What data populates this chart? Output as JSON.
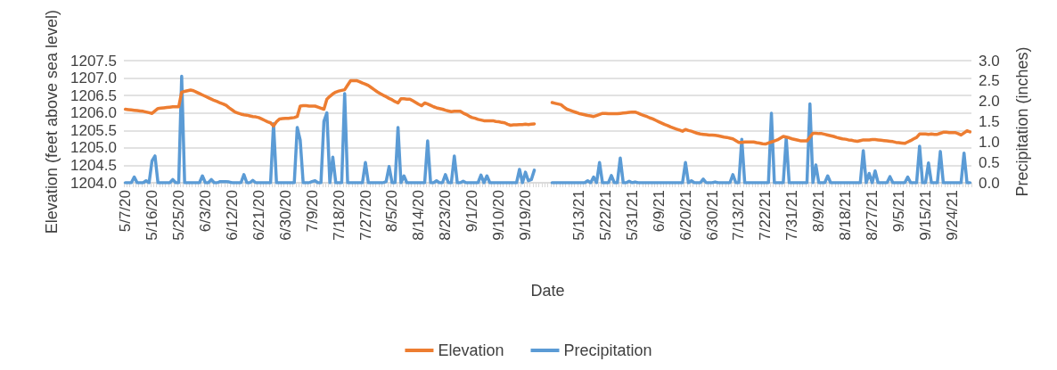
{
  "chart_data": {
    "type": "line",
    "xlabel": "Date",
    "ylabel": "Elevation (feet above sea level)",
    "y2label": "Precipitation (inches)",
    "categories": [
      "5/7/20",
      null,
      null,
      null,
      null,
      null,
      null,
      null,
      null,
      "5/16/20",
      null,
      null,
      null,
      null,
      null,
      null,
      null,
      null,
      "5/25/20",
      null,
      null,
      null,
      null,
      null,
      null,
      null,
      null,
      "6/3/20",
      null,
      null,
      null,
      null,
      null,
      null,
      null,
      null,
      "6/12/20",
      null,
      null,
      null,
      null,
      null,
      null,
      null,
      null,
      "6/21/20",
      null,
      null,
      null,
      null,
      null,
      null,
      null,
      null,
      "6/30/20",
      null,
      null,
      null,
      null,
      null,
      null,
      null,
      null,
      "7/9/20",
      null,
      null,
      null,
      null,
      null,
      null,
      null,
      null,
      "7/18/20",
      null,
      null,
      null,
      null,
      null,
      null,
      null,
      null,
      "7/27/20",
      null,
      null,
      null,
      null,
      null,
      null,
      null,
      null,
      "8/5/20",
      null,
      null,
      null,
      null,
      null,
      null,
      null,
      null,
      "8/14/20",
      null,
      null,
      null,
      null,
      null,
      null,
      null,
      null,
      "8/23/20",
      null,
      null,
      null,
      null,
      null,
      null,
      null,
      null,
      "9/1/20",
      null,
      null,
      null,
      null,
      null,
      null,
      null,
      null,
      "9/10/20",
      null,
      null,
      null,
      null,
      null,
      null,
      null,
      null,
      "9/19/20",
      null,
      null,
      null,
      null,
      null,
      null,
      null,
      null,
      null,
      null,
      null,
      null,
      null,
      null,
      null,
      null,
      null,
      "5/13/21",
      null,
      null,
      null,
      null,
      null,
      null,
      null,
      null,
      "5/22/21",
      null,
      null,
      null,
      null,
      null,
      null,
      null,
      null,
      "5/31/21",
      null,
      null,
      null,
      null,
      null,
      null,
      null,
      null,
      "6/9/21",
      null,
      null,
      null,
      null,
      null,
      null,
      null,
      null,
      "6/20/21",
      null,
      null,
      null,
      null,
      null,
      null,
      null,
      null,
      "6/30/21",
      null,
      null,
      null,
      null,
      null,
      null,
      null,
      null,
      "7/13/21",
      null,
      null,
      null,
      null,
      null,
      null,
      null,
      null,
      "7/22/21",
      null,
      null,
      null,
      null,
      null,
      null,
      null,
      null,
      "7/31/21",
      null,
      null,
      null,
      null,
      null,
      null,
      null,
      null,
      "8/9/21",
      null,
      null,
      null,
      null,
      null,
      null,
      null,
      null,
      "8/18/21",
      null,
      null,
      null,
      null,
      null,
      null,
      null,
      null,
      "8/27/21",
      null,
      null,
      null,
      null,
      null,
      null,
      null,
      null,
      "9/5/21",
      null,
      null,
      null,
      null,
      null,
      null,
      null,
      null,
      "9/15/21",
      null,
      null,
      null,
      null,
      null,
      null,
      null,
      null,
      "9/24/21",
      null,
      null,
      null,
      null,
      null,
      null
    ],
    "series": [
      {
        "name": "Elevation",
        "color": "#ed7d31",
        "values": [
          1206.11,
          1206.1,
          1206.09,
          1206.08,
          1206.07,
          1206.06,
          1206.05,
          1206.03,
          1206.01,
          1205.99,
          1206.06,
          1206.13,
          1206.14,
          1206.15,
          1206.16,
          1206.17,
          1206.18,
          1206.18,
          1206.18,
          1206.6,
          1206.62,
          1206.64,
          1206.66,
          1206.64,
          1206.6,
          1206.56,
          1206.52,
          1206.48,
          1206.44,
          1206.4,
          1206.36,
          1206.33,
          1206.29,
          1206.26,
          1206.22,
          1206.15,
          1206.09,
          1206.03,
          1206.0,
          1205.97,
          1205.95,
          1205.94,
          1205.92,
          1205.9,
          1205.89,
          1205.87,
          1205.83,
          1205.79,
          1205.75,
          1205.72,
          1205.63,
          1205.75,
          1205.83,
          1205.84,
          1205.85,
          1205.85,
          1205.86,
          1205.87,
          1205.9,
          1206.2,
          1206.21,
          1206.21,
          1206.2,
          1206.2,
          1206.2,
          1206.17,
          1206.14,
          1206.11,
          1206.4,
          1206.48,
          1206.55,
          1206.6,
          1206.63,
          1206.65,
          1206.67,
          1206.8,
          1206.93,
          1206.93,
          1206.93,
          1206.9,
          1206.86,
          1206.83,
          1206.79,
          1206.73,
          1206.67,
          1206.61,
          1206.56,
          1206.51,
          1206.47,
          1206.42,
          1206.38,
          1206.33,
          1206.29,
          1206.41,
          1206.41,
          1206.4,
          1206.4,
          1206.35,
          1206.3,
          1206.25,
          1206.21,
          1206.29,
          1206.26,
          1206.22,
          1206.18,
          1206.15,
          1206.13,
          1206.11,
          1206.08,
          1206.06,
          1206.04,
          1206.05,
          1206.05,
          1206.05,
          1206.0,
          1205.96,
          1205.91,
          1205.87,
          1205.85,
          1205.82,
          1205.8,
          1205.78,
          1205.78,
          1205.78,
          1205.78,
          1205.76,
          1205.75,
          1205.73,
          1205.72,
          1205.68,
          1205.65,
          1205.66,
          1205.66,
          1205.67,
          1205.67,
          1205.68,
          1205.67,
          1205.68,
          1205.69,
          null,
          null,
          null,
          null,
          null,
          1206.3,
          1206.28,
          1206.26,
          1206.24,
          1206.17,
          1206.11,
          1206.08,
          1206.05,
          1206.02,
          1205.99,
          1205.97,
          1205.95,
          1205.93,
          1205.92,
          1205.9,
          1205.93,
          1205.96,
          1205.99,
          1205.99,
          1205.98,
          1205.98,
          1205.98,
          1205.98,
          1205.99,
          1206.0,
          1206.01,
          1206.02,
          1206.03,
          1206.03,
          1206.0,
          1205.96,
          1205.93,
          1205.9,
          1205.86,
          1205.83,
          1205.79,
          1205.75,
          1205.71,
          1205.67,
          1205.64,
          1205.6,
          1205.57,
          1205.54,
          1205.51,
          1205.48,
          1205.53,
          1205.5,
          1205.48,
          1205.45,
          1205.42,
          1205.4,
          1205.39,
          1205.38,
          1205.37,
          1205.37,
          1205.36,
          1205.35,
          1205.33,
          1205.31,
          1205.3,
          1205.28,
          1205.26,
          1205.21,
          1205.16,
          1205.16,
          1205.17,
          1205.17,
          1205.17,
          1205.17,
          1205.15,
          1205.14,
          1205.12,
          1205.11,
          1205.14,
          1205.17,
          1205.2,
          1205.23,
          1205.28,
          1205.33,
          1205.31,
          1205.29,
          1205.26,
          1205.24,
          1205.22,
          1205.2,
          1205.2,
          1205.2,
          1205.31,
          1205.42,
          1205.42,
          1205.41,
          1205.41,
          1205.39,
          1205.37,
          1205.35,
          1205.33,
          1205.3,
          1205.28,
          1205.26,
          1205.25,
          1205.23,
          1205.22,
          1205.2,
          1205.19,
          1205.21,
          1205.23,
          1205.23,
          1205.23,
          1205.24,
          1205.24,
          1205.23,
          1205.22,
          1205.21,
          1205.2,
          1205.19,
          1205.18,
          1205.16,
          1205.15,
          1205.14,
          1205.13,
          1205.17,
          1205.21,
          1205.26,
          1205.3,
          1205.4,
          1205.4,
          1205.4,
          1205.39,
          1205.4,
          1205.39,
          1205.39,
          1205.42,
          1205.45,
          1205.45,
          1205.44,
          1205.44,
          1205.44,
          1205.41,
          1205.37,
          1205.43,
          1205.49,
          1205.46
        ]
      },
      {
        "name": "Precipitation",
        "color": "#5b9bd5",
        "axis": "y2",
        "values": [
          0,
          0,
          0,
          0.14,
          0,
          0,
          0,
          0.05,
          0,
          0.54,
          0.66,
          0,
          0,
          0,
          0,
          0,
          0.08,
          0,
          0,
          2.62,
          0,
          0,
          0,
          0,
          0,
          0,
          0.17,
          0,
          0,
          0.08,
          0,
          0,
          0.03,
          0.03,
          0.03,
          0.02,
          0,
          0,
          0,
          0,
          0.2,
          0,
          0,
          0.06,
          0,
          0,
          0,
          0,
          0,
          0,
          1.45,
          0,
          0,
          0,
          0,
          0,
          0,
          0,
          1.36,
          1.05,
          0,
          0,
          0,
          0.03,
          0.05,
          0,
          0,
          1.51,
          1.72,
          0,
          0.63,
          0,
          0,
          0,
          2.19,
          0,
          0,
          0,
          0,
          0,
          0,
          0.5,
          0,
          0,
          0,
          0,
          0,
          0,
          0.03,
          0.4,
          0,
          0,
          1.36,
          0,
          0.17,
          0,
          0,
          0,
          0,
          0,
          0,
          0,
          1.03,
          0,
          0,
          0.05,
          0,
          0,
          0.2,
          0,
          0,
          0.66,
          0,
          0,
          0.04,
          0,
          0,
          0,
          0,
          0,
          0.19,
          0,
          0.17,
          0,
          0,
          0,
          0,
          0,
          0,
          0,
          0,
          0,
          0,
          0.33,
          0,
          0.26,
          0.05,
          0.08,
          0.31,
          null,
          null,
          null,
          null,
          null,
          0,
          0,
          0,
          0,
          0,
          0,
          0,
          0,
          0,
          0,
          0,
          0,
          0.05,
          0,
          0.14,
          0,
          0.5,
          0,
          0,
          0,
          0.18,
          0,
          0,
          0.61,
          0,
          0,
          0.04,
          0,
          0.02,
          0,
          0,
          0,
          0,
          0,
          0,
          0,
          0,
          0,
          0,
          0,
          0,
          0,
          0,
          0,
          0,
          0.5,
          0,
          0.05,
          0,
          0,
          0,
          0.09,
          0,
          0,
          0,
          0.02,
          0,
          0,
          0,
          0,
          0,
          0.2,
          0,
          0,
          1.07,
          0,
          0,
          0,
          0,
          0,
          0,
          0,
          0,
          0,
          1.71,
          0,
          0,
          0,
          0,
          1.1,
          0,
          0,
          0,
          0,
          0,
          0,
          0,
          1.94,
          0,
          0.44,
          0,
          0,
          0,
          0.17,
          0,
          0,
          0,
          0,
          0,
          0,
          0,
          0,
          0,
          0,
          0,
          0.79,
          0,
          0.23,
          0,
          0.29,
          0,
          0,
          0,
          0,
          0.15,
          0,
          0,
          0,
          0,
          0,
          0.14,
          0,
          0,
          0,
          0.9,
          0,
          0,
          0.49,
          0,
          0,
          0,
          0.77,
          0,
          0,
          0,
          0,
          0,
          0,
          0,
          0.73,
          0,
          0
        ]
      }
    ],
    "ylim": [
      1204,
      1207.5
    ],
    "yticks": [
      {
        "value": 1204,
        "label": "1204.0"
      },
      1204.5,
      {
        "value": 1205,
        "label": "1205.0"
      },
      1205.5,
      {
        "value": 1206,
        "label": "1206.0"
      },
      1206.5,
      {
        "value": 1207,
        "label": "1207.0"
      },
      1207.5
    ],
    "y2lim": [
      0,
      3
    ],
    "y2ticks": [
      {
        "value": 0,
        "label": "0.0"
      },
      0.5,
      {
        "value": 1,
        "label": "1.0"
      },
      1.5,
      {
        "value": 2,
        "label": "2.0"
      },
      2.5,
      {
        "value": 3,
        "label": "3.0"
      }
    ],
    "grid": "y",
    "legend": "bottom",
    "marker": "none",
    "line_style": "solid"
  }
}
